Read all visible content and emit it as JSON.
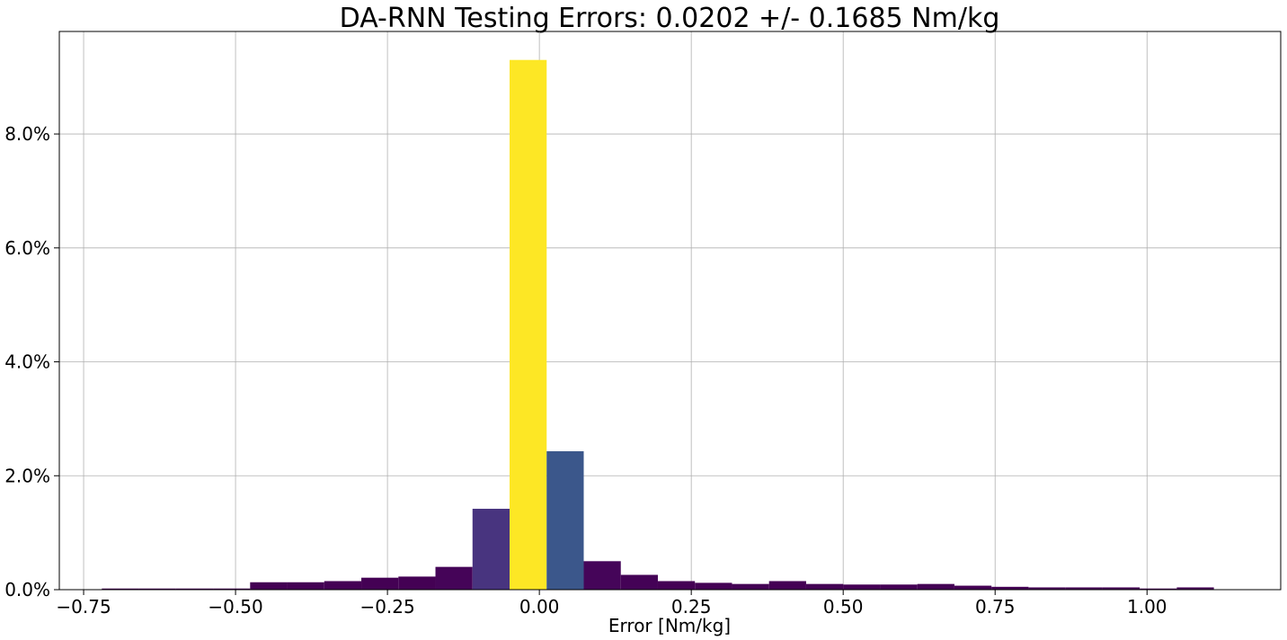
{
  "chart_data": {
    "type": "bar",
    "title": "DA-RNN Testing Errors: 0.0202 +/- 0.1685 Nm/kg",
    "xlabel": "Error [Nm/kg]",
    "ylabel": "",
    "xlim": [
      -0.79,
      1.22
    ],
    "ylim": [
      0,
      9.8
    ],
    "grid": true,
    "x_ticks": [
      -0.75,
      -0.5,
      -0.25,
      0.0,
      0.25,
      0.5,
      0.75,
      1.0
    ],
    "x_tick_labels": [
      "−0.75",
      "−0.50",
      "−0.25",
      "0.00",
      "0.25",
      "0.50",
      "0.75",
      "1.00"
    ],
    "y_ticks": [
      0,
      2,
      4,
      6,
      8
    ],
    "y_tick_labels": [
      "0.0%",
      "2.0%",
      "4.0%",
      "6.0%",
      "8.0%"
    ],
    "bin_edges": [
      -0.72,
      -0.659,
      -0.598,
      -0.537,
      -0.476,
      -0.415,
      -0.354,
      -0.293,
      -0.232,
      -0.171,
      -0.11,
      -0.049,
      0.012,
      0.073,
      0.134,
      0.195,
      0.256,
      0.317,
      0.378,
      0.439,
      0.5,
      0.561,
      0.622,
      0.683,
      0.744,
      0.805,
      0.866,
      0.927,
      0.988,
      1.049,
      1.11
    ],
    "values": [
      0.02,
      0.02,
      0.02,
      0.02,
      0.13,
      0.13,
      0.15,
      0.21,
      0.23,
      0.4,
      1.42,
      9.3,
      2.43,
      0.5,
      0.26,
      0.15,
      0.12,
      0.1,
      0.15,
      0.1,
      0.09,
      0.09,
      0.1,
      0.07,
      0.05,
      0.04,
      0.04,
      0.04,
      0.02,
      0.04
    ],
    "colors": [
      "#440154",
      "#440154",
      "#440154",
      "#440154",
      "#440154",
      "#440154",
      "#440154",
      "#440154",
      "#440154",
      "#450458",
      "#48347f",
      "#fde725",
      "#3b578b",
      "#450559",
      "#440256",
      "#440154",
      "#440154",
      "#440154",
      "#440154",
      "#440154",
      "#440154",
      "#440154",
      "#440154",
      "#440154",
      "#440154",
      "#440154",
      "#440154",
      "#440154",
      "#440154",
      "#440154"
    ]
  }
}
